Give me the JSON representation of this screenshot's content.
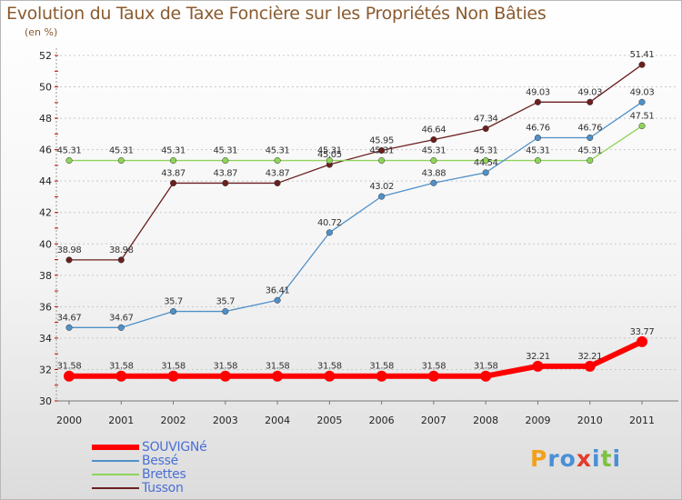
{
  "chart_data": {
    "type": "line",
    "title": "Evolution du Taux de Taxe Foncière sur les Propriétés Non Bâties",
    "subtitle": "(en %)",
    "x": [
      2000,
      2001,
      2002,
      2003,
      2004,
      2005,
      2006,
      2007,
      2008,
      2009,
      2010,
      2011
    ],
    "ylim": [
      30,
      52
    ],
    "yticks": [
      30,
      32,
      34,
      36,
      38,
      40,
      42,
      44,
      46,
      48,
      50,
      52
    ],
    "grid": "horizontal dashed",
    "legend_position": "bottom-left",
    "series": [
      {
        "name": "Tusson",
        "color": "#6b1f1f",
        "values": [
          38.98,
          38.98,
          43.87,
          43.87,
          43.87,
          45.05,
          45.95,
          46.64,
          47.34,
          49.03,
          49.03,
          51.41
        ],
        "labels": [
          "38.98",
          "38.98",
          "43.87",
          "43.87",
          "43.87",
          "45.05",
          "45.95",
          "46.64",
          "47.34",
          "49.03",
          "49.03",
          "51.41"
        ]
      },
      {
        "name": "Brettes",
        "color": "#8fd45a",
        "values": [
          45.31,
          45.31,
          45.31,
          45.31,
          45.31,
          45.31,
          45.31,
          45.31,
          45.31,
          45.31,
          45.31,
          47.51
        ],
        "labels": [
          "45.31",
          "45.31",
          "45.31",
          "45.31",
          "45.31",
          "45.31",
          "45.31",
          "45.31",
          "45.31",
          "45.31",
          "45.31",
          "47.51"
        ]
      },
      {
        "name": "Bessé",
        "color": "#4f90c8",
        "values": [
          34.67,
          34.67,
          35.7,
          35.7,
          36.41,
          40.72,
          43.02,
          43.88,
          44.54,
          46.76,
          46.76,
          49.03
        ],
        "labels": [
          "34.67",
          "34.67",
          "35.7",
          "35.7",
          "36.41",
          "40.72",
          "43.02",
          "43.88",
          "44.54",
          "46.76",
          "46.76",
          "49.03"
        ]
      },
      {
        "name": "SOUVIGNé",
        "color": "#ff0000",
        "values": [
          31.58,
          31.58,
          31.58,
          31.58,
          31.58,
          31.58,
          31.58,
          31.58,
          31.58,
          32.21,
          32.21,
          33.77
        ],
        "labels": [
          "31.58",
          "31.58",
          "31.58",
          "31.58",
          "31.58",
          "31.58",
          "31.58",
          "31.58",
          "31.58",
          "32.21",
          "32.21",
          "33.77"
        ]
      }
    ],
    "legend": [
      "SOUVIGNé",
      "Bessé",
      "Brettes",
      "Tusson"
    ]
  },
  "logo": {
    "text": "Prox iti",
    "letters": [
      "P",
      "r",
      "o",
      "x",
      "i",
      "t",
      "i"
    ],
    "colors": [
      "#f3a11c",
      "#4a8fd6",
      "#4a8fd6",
      "#e43b2a",
      "#4a8fd6",
      "#7cc242",
      "#4a8fd6"
    ]
  }
}
